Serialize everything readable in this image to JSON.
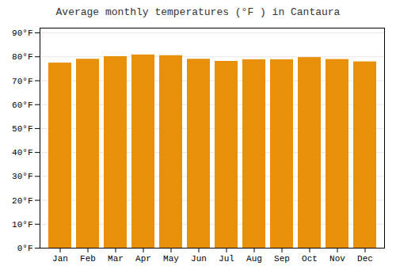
{
  "chart_data": {
    "type": "bar",
    "title": "Average monthly temperatures (°F ) in Cantaura",
    "categories": [
      "Jan",
      "Feb",
      "Mar",
      "Apr",
      "May",
      "Jun",
      "Jul",
      "Aug",
      "Sep",
      "Oct",
      "Nov",
      "Dec"
    ],
    "values": [
      77.4,
      79.0,
      80.1,
      80.8,
      80.5,
      79.0,
      78.1,
      78.8,
      78.8,
      79.7,
      78.9,
      77.9
    ],
    "color": "#E8900A",
    "ylim": [
      0,
      92
    ],
    "yticks": [
      {
        "value": 0,
        "label": "0°F"
      },
      {
        "value": 10,
        "label": "10°F"
      },
      {
        "value": 20,
        "label": "20°F"
      },
      {
        "value": 30,
        "label": "30°F"
      },
      {
        "value": 40,
        "label": "40°F"
      },
      {
        "value": 50,
        "label": "50°F"
      },
      {
        "value": 60,
        "label": "60°F"
      },
      {
        "value": 70,
        "label": "70°F"
      },
      {
        "value": 80,
        "label": "80°F"
      },
      {
        "value": 90,
        "label": "90°F"
      }
    ],
    "grid": true
  }
}
